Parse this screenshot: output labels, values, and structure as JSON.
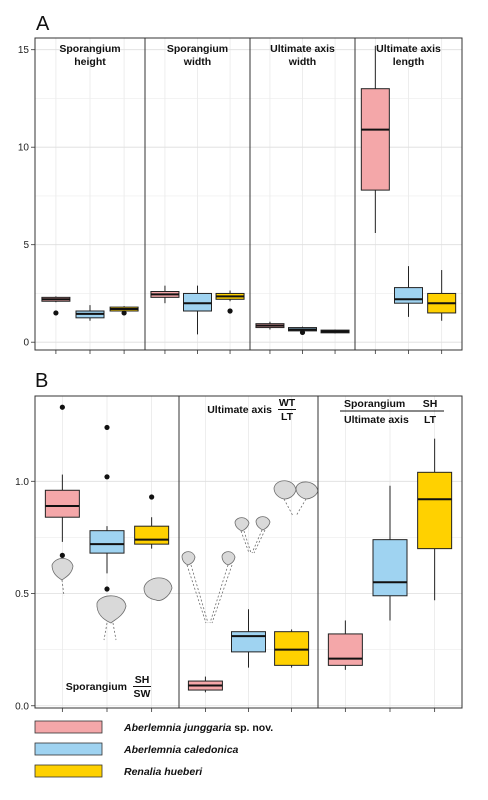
{
  "colors": {
    "Aberlemnia junggaria sp. nov.": "#f4a7a9",
    "Aberlemnia caledonica": "#9fd3f1",
    "Renalia hueberi": "#ffd100"
  },
  "panel_labels": [
    "A",
    "B"
  ],
  "legend": [
    {
      "genus_species": "Aberlemnia junggaria",
      "suffix": " sp. nov.",
      "color_key": "Aberlemnia junggaria sp. nov."
    },
    {
      "genus_species": "Aberlemnia caledonica",
      "suffix": "",
      "color_key": "Aberlemnia caledonica"
    },
    {
      "genus_species": "Renalia hueberi",
      "suffix": "",
      "color_key": "Renalia hueberi"
    }
  ],
  "chart_data": [
    {
      "type": "boxplot",
      "panel": "A",
      "ylim": [
        -0.4,
        15.6
      ],
      "yticks": [
        0,
        5,
        10,
        15
      ],
      "grid": true,
      "facets": [
        {
          "title": [
            "Sporangium",
            "height"
          ],
          "series": [
            {
              "name": "Aberlemnia junggaria sp. nov.",
              "q1": 2.1,
              "median": 2.2,
              "q3": 2.3,
              "whisker_low": 2.05,
              "whisker_high": 2.35,
              "outliers": [
                1.5
              ]
            },
            {
              "name": "Aberlemnia caledonica",
              "q1": 1.25,
              "median": 1.45,
              "q3": 1.6,
              "whisker_low": 1.1,
              "whisker_high": 1.9,
              "outliers": []
            },
            {
              "name": "Renalia hueberi",
              "q1": 1.6,
              "median": 1.7,
              "q3": 1.8,
              "whisker_low": 1.55,
              "whisker_high": 1.85,
              "outliers": [
                1.5
              ]
            }
          ]
        },
        {
          "title": [
            "Sporangium",
            "width"
          ],
          "series": [
            {
              "name": "Aberlemnia junggaria sp. nov.",
              "q1": 2.3,
              "median": 2.45,
              "q3": 2.6,
              "whisker_low": 2.0,
              "whisker_high": 2.9,
              "outliers": []
            },
            {
              "name": "Aberlemnia caledonica",
              "q1": 1.6,
              "median": 2.0,
              "q3": 2.5,
              "whisker_low": 0.4,
              "whisker_high": 2.9,
              "outliers": []
            },
            {
              "name": "Renalia hueberi",
              "q1": 2.2,
              "median": 2.35,
              "q3": 2.5,
              "whisker_low": 2.1,
              "whisker_high": 2.65,
              "outliers": [
                1.6
              ]
            }
          ]
        },
        {
          "title": [
            "Ultimate axis",
            "width"
          ],
          "series": [
            {
              "name": "Aberlemnia junggaria sp. nov.",
              "q1": 0.75,
              "median": 0.85,
              "q3": 0.95,
              "whisker_low": 0.65,
              "whisker_high": 1.05,
              "outliers": []
            },
            {
              "name": "Aberlemnia caledonica",
              "q1": 0.58,
              "median": 0.65,
              "q3": 0.75,
              "whisker_low": 0.55,
              "whisker_high": 0.8,
              "outliers": [
                0.5
              ]
            },
            {
              "name": "Renalia hueberi",
              "q1": 0.48,
              "median": 0.55,
              "q3": 0.62,
              "whisker_low": 0.45,
              "whisker_high": 0.65,
              "outliers": []
            }
          ]
        },
        {
          "title": [
            "Ultimate axis",
            "length"
          ],
          "series": [
            {
              "name": "Aberlemnia junggaria sp. nov.",
              "q1": 7.8,
              "median": 10.9,
              "q3": 13.0,
              "whisker_low": 5.6,
              "whisker_high": 15.2,
              "outliers": []
            },
            {
              "name": "Aberlemnia caledonica",
              "q1": 2.0,
              "median": 2.2,
              "q3": 2.8,
              "whisker_low": 1.3,
              "whisker_high": 3.9,
              "outliers": []
            },
            {
              "name": "Renalia hueberi",
              "q1": 1.5,
              "median": 2.0,
              "q3": 2.5,
              "whisker_low": 1.1,
              "whisker_high": 3.7,
              "outliers": []
            }
          ]
        }
      ]
    },
    {
      "type": "boxplot",
      "panel": "B",
      "ylim": [
        -0.01,
        1.38
      ],
      "yticks": [
        0.0,
        0.5,
        1.0
      ],
      "ytick_labels": [
        "0.0",
        "0.5",
        "1.0"
      ],
      "grid": true,
      "facets": [
        {
          "title_prefix": "Sporangium",
          "title_num": "SH",
          "title_den": "SW",
          "title_position": "bottom",
          "series": [
            {
              "name": "Aberlemnia junggaria sp. nov.",
              "q1": 0.84,
              "median": 0.89,
              "q3": 0.96,
              "whisker_low": 0.73,
              "whisker_high": 1.03,
              "outliers": [
                1.33,
                0.67
              ]
            },
            {
              "name": "Aberlemnia caledonica",
              "q1": 0.68,
              "median": 0.72,
              "q3": 0.78,
              "whisker_low": 0.59,
              "whisker_high": 0.8,
              "outliers": [
                1.24,
                1.02,
                0.52
              ]
            },
            {
              "name": "Renalia hueberi",
              "q1": 0.72,
              "median": 0.74,
              "q3": 0.8,
              "whisker_low": 0.7,
              "whisker_high": 0.84,
              "outliers": [
                0.93
              ]
            }
          ]
        },
        {
          "title_prefix": "Ultimate axis",
          "title_num": "WT",
          "title_den": "LT",
          "title_position": "top",
          "series": [
            {
              "name": "Aberlemnia junggaria sp. nov.",
              "q1": 0.07,
              "median": 0.09,
              "q3": 0.11,
              "whisker_low": 0.06,
              "whisker_high": 0.13,
              "outliers": []
            },
            {
              "name": "Aberlemnia caledonica",
              "q1": 0.24,
              "median": 0.31,
              "q3": 0.33,
              "whisker_low": 0.17,
              "whisker_high": 0.43,
              "outliers": []
            },
            {
              "name": "Renalia hueberi",
              "q1": 0.18,
              "median": 0.25,
              "q3": 0.33,
              "whisker_low": 0.17,
              "whisker_high": 0.34,
              "outliers": []
            }
          ]
        },
        {
          "title_top": {
            "left": "Sporangium",
            "num": "SH"
          },
          "title_bottom": {
            "left": "Ultimate axis",
            "den": "LT"
          },
          "title_position": "top",
          "series": [
            {
              "name": "Aberlemnia junggaria sp. nov.",
              "q1": 0.18,
              "median": 0.21,
              "q3": 0.32,
              "whisker_low": 0.16,
              "whisker_high": 0.38,
              "outliers": []
            },
            {
              "name": "Aberlemnia caledonica",
              "q1": 0.49,
              "median": 0.55,
              "q3": 0.74,
              "whisker_low": 0.38,
              "whisker_high": 0.98,
              "outliers": []
            },
            {
              "name": "Renalia hueberi",
              "q1": 0.7,
              "median": 0.92,
              "q3": 1.04,
              "whisker_low": 0.47,
              "whisker_high": 1.19,
              "outliers": []
            }
          ]
        }
      ]
    }
  ]
}
